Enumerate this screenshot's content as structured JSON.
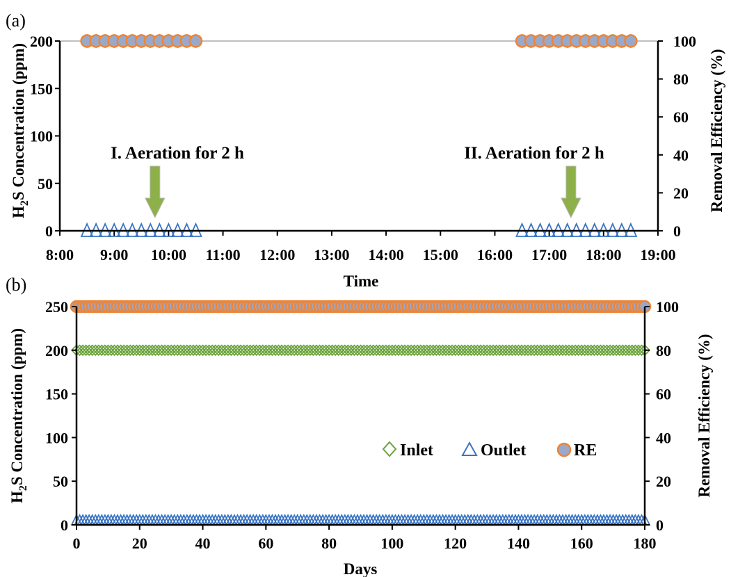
{
  "chart_data": [
    {
      "panel_label": "(a)",
      "type": "scatter",
      "xlabel": "Time",
      "x_ticks": [
        "8:00",
        "9:00",
        "10:00",
        "11:00",
        "12:00",
        "13:00",
        "14:00",
        "15:00",
        "16:00",
        "17:00",
        "18:00",
        "19:00"
      ],
      "xlim_hours": [
        8,
        19
      ],
      "y_left_ticks": [
        "0",
        "50",
        "100",
        "150",
        "200"
      ],
      "ylim_left": [
        0,
        200
      ],
      "y_right_ticks": [
        "0",
        "20",
        "40",
        "60",
        "80",
        "100"
      ],
      "ylim_right": [
        0,
        100
      ],
      "ylabel_right": "Removal Efficiency (%)",
      "ylabel_left_parts": [
        "H",
        "2",
        "S Concentration (ppm)"
      ],
      "reference_line_y": 200,
      "series": [
        {
          "series_id": "inlet",
          "axis": "left",
          "marker": "diamond",
          "x_ranges_hours": [
            [
              8.5,
              10.5
            ],
            [
              16.5,
              18.5
            ]
          ],
          "step_minutes": 10,
          "y": 200
        },
        {
          "series_id": "outlet",
          "axis": "left",
          "marker": "triangle",
          "x_ranges_hours": [
            [
              8.5,
              10.5
            ],
            [
              16.5,
              18.5
            ]
          ],
          "step_minutes": 10,
          "y": 0
        },
        {
          "series_id": "re",
          "axis": "right",
          "marker": "circle",
          "x_ranges_hours": [
            [
              8.5,
              10.5
            ],
            [
              16.5,
              18.5
            ]
          ],
          "step_minutes": 10,
          "y": 100
        }
      ],
      "annotations": [
        {
          "text": "I. Aeration for 2 h",
          "x_hours": 9.75
        },
        {
          "text": "II. Aeration for 2 h",
          "x_hours": 17.4
        }
      ]
    },
    {
      "panel_label": "(b)",
      "type": "scatter",
      "xlabel": "Days",
      "x_ticks": [
        "0",
        "20",
        "40",
        "60",
        "80",
        "100",
        "120",
        "140",
        "160",
        "180"
      ],
      "xlim": [
        0,
        180
      ],
      "y_left_ticks": [
        "0",
        "50",
        "100",
        "150",
        "200",
        "250"
      ],
      "ylim_left": [
        0,
        250
      ],
      "y_right_ticks": [
        "0",
        "20",
        "40",
        "60",
        "80",
        "100"
      ],
      "ylim_right": [
        0,
        100
      ],
      "ylabel_right": "Removal Efficiency (%)",
      "ylabel_left_parts": [
        "H",
        "2",
        "S Concentration (ppm)"
      ],
      "series": [
        {
          "series_id": "inlet",
          "name": "Inlet",
          "axis": "left",
          "marker": "diamond",
          "x_range": [
            0,
            180
          ],
          "x_step": 1,
          "y": 200
        },
        {
          "series_id": "outlet",
          "name": "Outlet",
          "axis": "left",
          "marker": "triangle",
          "x_range": [
            0,
            180
          ],
          "x_step": 1,
          "y": 0
        },
        {
          "series_id": "re",
          "name": "RE",
          "axis": "right",
          "marker": "circle",
          "x_range": [
            0,
            180
          ],
          "x_step": 1,
          "y": 100
        }
      ],
      "legend": {
        "placement": "center-right",
        "entries": [
          "Inlet",
          "Outlet",
          "RE"
        ]
      }
    }
  ],
  "colors": {
    "inlet": "#6aa33a",
    "outlet": "#3a75c4",
    "re_fill": "#9aa9c9",
    "re_edge": "#ee8436",
    "arrow": "#8db049",
    "axis": "#000000",
    "reference_line": "#808080"
  },
  "icons": {
    "inlet_marker": "diamond-outline",
    "outlet_marker": "triangle-outline",
    "re_marker": "circle-filled",
    "annotation_marker": "down-arrow"
  }
}
